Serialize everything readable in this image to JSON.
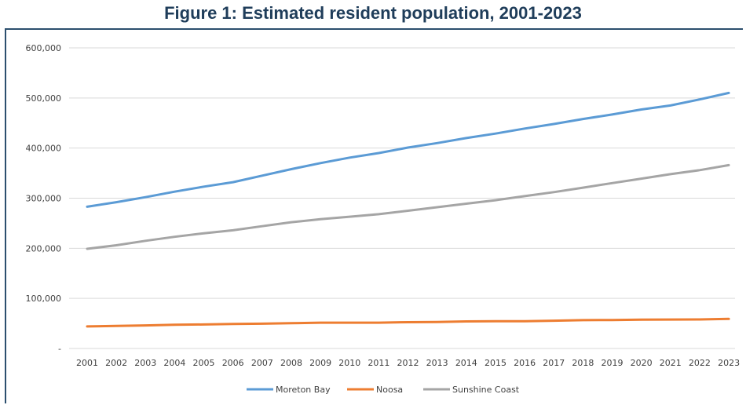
{
  "chart_data": {
    "type": "line",
    "title": "Figure 1: Estimated resident population, 2001-2023",
    "xlabel": "",
    "ylabel": "",
    "categories": [
      "2001",
      "2002",
      "2003",
      "2004",
      "2005",
      "2006",
      "2007",
      "2008",
      "2009",
      "2010",
      "2011",
      "2012",
      "2013",
      "2014",
      "2015",
      "2016",
      "2017",
      "2018",
      "2019",
      "2020",
      "2021",
      "2022",
      "2023"
    ],
    "ylim": [
      0,
      600000
    ],
    "y_tick_labels": [
      "-",
      "100,000",
      "200,000",
      "300,000",
      "400,000",
      "500,000",
      "600,000"
    ],
    "grid": true,
    "legend_position": "bottom",
    "series": [
      {
        "name": "Moreton Bay",
        "color": "#5b9bd5",
        "values": [
          283000,
          292000,
          302000,
          313000,
          323000,
          332000,
          345000,
          358000,
          370000,
          381000,
          390000,
          401000,
          410000,
          420000,
          429000,
          439000,
          448000,
          458000,
          467000,
          477000,
          485000,
          497000,
          510000
        ]
      },
      {
        "name": "Noosa",
        "color": "#ed7d31",
        "values": [
          44000,
          45000,
          46000,
          47500,
          48000,
          49000,
          49500,
          50500,
          51500,
          51500,
          51500,
          52500,
          53000,
          54000,
          54500,
          54500,
          55500,
          56500,
          56800,
          57500,
          57800,
          58000,
          59000
        ]
      },
      {
        "name": "Sunshine Coast",
        "color": "#a5a5a5",
        "values": [
          199000,
          206000,
          215000,
          223000,
          230000,
          236000,
          244000,
          252000,
          258000,
          263000,
          268000,
          275000,
          282000,
          289000,
          296000,
          304000,
          312000,
          321000,
          330000,
          339000,
          348000,
          356000,
          366000
        ]
      }
    ]
  }
}
